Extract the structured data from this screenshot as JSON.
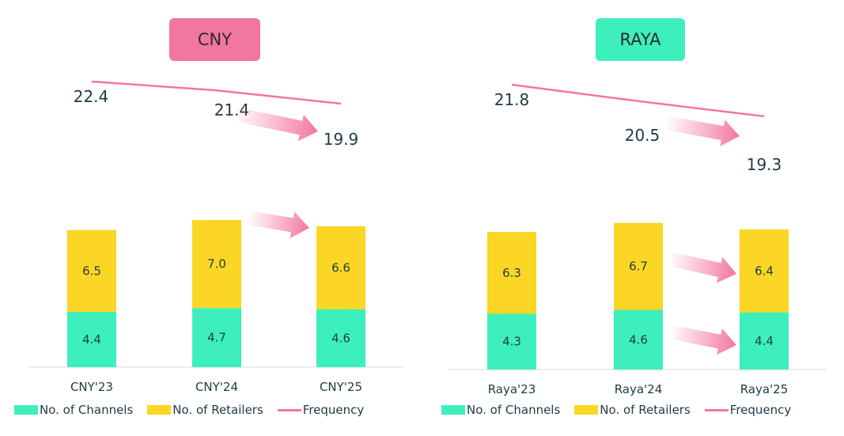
{
  "colors": {
    "channels": "#3DEFBC",
    "retailers": "#FBD624",
    "frequency": "#F2779F",
    "text": "#1F3B46",
    "cny_pill": "#F2779F",
    "raya_pill": "#3DEFBC"
  },
  "legend": {
    "channels": "No. of Channels",
    "retailers": "No. of Retailers",
    "frequency": "Frequency"
  },
  "chart_data": [
    {
      "type": "bar",
      "title": "CNY",
      "stacked": true,
      "categories": [
        "CNY'23",
        "CNY'24",
        "CNY'25"
      ],
      "series": [
        {
          "name": "No. of Channels",
          "values": [
            4.4,
            4.7,
            4.6
          ]
        },
        {
          "name": "No. of Retailers",
          "values": [
            6.5,
            7.0,
            6.6
          ]
        }
      ],
      "line_series": {
        "name": "Frequency",
        "values": [
          22.4,
          21.4,
          19.9
        ]
      },
      "arrows": [
        "frequency 24→25",
        "retailers 24→25"
      ]
    },
    {
      "type": "bar",
      "title": "RAYA",
      "stacked": true,
      "categories": [
        "Raya'23",
        "Raya'24",
        "Raya'25"
      ],
      "series": [
        {
          "name": "No. of Channels",
          "values": [
            4.3,
            4.6,
            4.4
          ]
        },
        {
          "name": "No. of Retailers",
          "values": [
            6.3,
            6.7,
            6.4
          ]
        }
      ],
      "line_series": {
        "name": "Frequency",
        "values": [
          21.8,
          20.5,
          19.3
        ]
      },
      "arrows": [
        "frequency 24→25",
        "retailers 24→25",
        "channels 24→25"
      ]
    }
  ]
}
